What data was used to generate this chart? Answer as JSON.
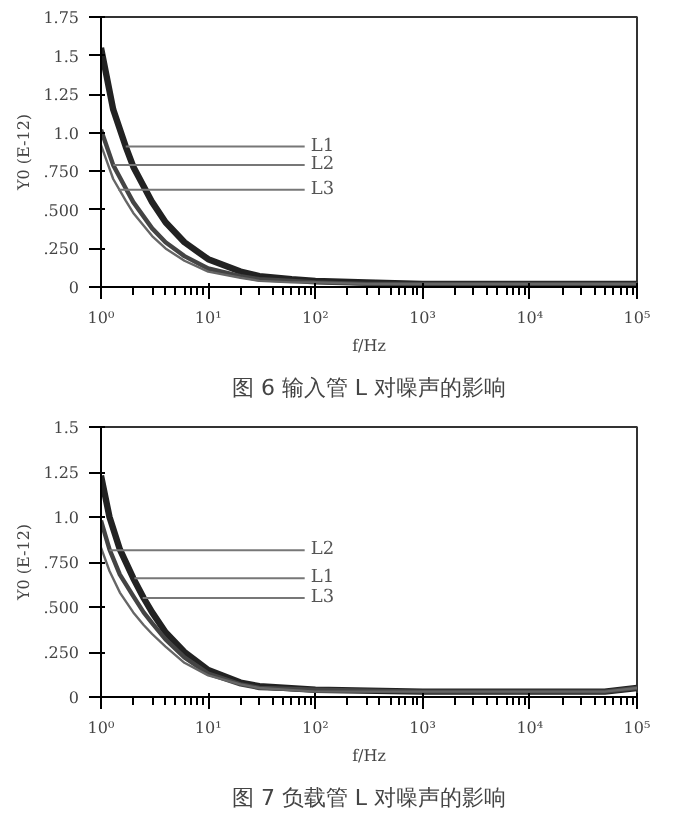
{
  "chart_data": [
    {
      "type": "line",
      "title": "图 6 输入管 L 对噪声的影响",
      "xlabel": "f/Hz",
      "ylabel": "Y0 (E-12)",
      "log": "x",
      "xlim": [
        1,
        100000
      ],
      "ylim": [
        0,
        1.75
      ],
      "xticks": [
        {
          "value": 1,
          "label": "10⁰"
        },
        {
          "value": 10,
          "label": "10¹"
        },
        {
          "value": 100,
          "label": "10²"
        },
        {
          "value": 1000,
          "label": "10³"
        },
        {
          "value": 10000,
          "label": "10⁴"
        },
        {
          "value": 100000,
          "label": "10⁵"
        }
      ],
      "yticks": [
        0,
        {
          "value": 0.25,
          "label": ".250"
        },
        {
          "value": 0.5,
          "label": ".500"
        },
        {
          "value": 0.75,
          "label": ".750"
        },
        {
          "value": 1.0,
          "label": "1.0"
        },
        1.25,
        1.5,
        1.75
      ],
      "x": [
        1,
        1.3,
        1.7,
        2,
        3,
        4,
        6,
        10,
        20,
        30,
        60,
        100,
        300,
        1000,
        10000,
        100000
      ],
      "series": [
        {
          "color": "#222222",
          "values": [
            1.55,
            1.15,
            0.91,
            0.78,
            0.55,
            0.42,
            0.29,
            0.18,
            0.1,
            0.07,
            0.05,
            0.04,
            0.03,
            0.02,
            0.02,
            0.02
          ]
        },
        {
          "color": "#444444",
          "values": [
            1.02,
            0.79,
            0.64,
            0.55,
            0.38,
            0.29,
            0.2,
            0.12,
            0.07,
            0.05,
            0.04,
            0.03,
            0.02,
            0.02,
            0.02,
            0.02
          ]
        },
        {
          "color": "#666666",
          "values": [
            0.92,
            0.7,
            0.56,
            0.48,
            0.33,
            0.25,
            0.17,
            0.1,
            0.06,
            0.04,
            0.03,
            0.03,
            0.02,
            0.02,
            0.02,
            0.02
          ]
        }
      ],
      "annotations": [
        {
          "text": "L1",
          "x": 1.7,
          "y": 0.91
        },
        {
          "text": "L2",
          "x": 1.3,
          "y": 0.79
        },
        {
          "text": "L3",
          "x": 1.45,
          "y": 0.63
        }
      ]
    },
    {
      "type": "line",
      "title": "图 7 负载管 L 对噪声的影响",
      "xlabel": "f/Hz",
      "ylabel": "Y0 (E-12)",
      "log": "x",
      "xlim": [
        1,
        100000
      ],
      "ylim": [
        0,
        1.5
      ],
      "xticks": [
        {
          "value": 1,
          "label": "10⁰"
        },
        {
          "value": 10,
          "label": "10¹"
        },
        {
          "value": 100,
          "label": "10²"
        },
        {
          "value": 1000,
          "label": "10³"
        },
        {
          "value": 10000,
          "label": "10⁴"
        },
        {
          "value": 100000,
          "label": "10⁵"
        }
      ],
      "yticks": [
        0,
        {
          "value": 0.25,
          "label": ".250"
        },
        {
          "value": 0.5,
          "label": ".500"
        },
        {
          "value": 0.75,
          "label": ".750"
        },
        {
          "value": 1.0,
          "label": "1.0"
        },
        1.25,
        1.5
      ],
      "x": [
        1,
        1.2,
        1.5,
        2,
        2.5,
        3,
        4,
        6,
        10,
        20,
        30,
        100,
        1000,
        10000,
        50000,
        100000
      ],
      "series": [
        {
          "color": "#222222",
          "values": [
            1.23,
            1.0,
            0.82,
            0.66,
            0.55,
            0.47,
            0.36,
            0.25,
            0.15,
            0.08,
            0.06,
            0.04,
            0.03,
            0.03,
            0.03,
            0.05
          ]
        },
        {
          "color": "#444444",
          "values": [
            0.98,
            0.82,
            0.68,
            0.56,
            0.47,
            0.41,
            0.32,
            0.22,
            0.13,
            0.07,
            0.05,
            0.04,
            0.03,
            0.03,
            0.03,
            0.05
          ]
        },
        {
          "color": "#666666",
          "values": [
            0.83,
            0.7,
            0.58,
            0.47,
            0.4,
            0.35,
            0.28,
            0.19,
            0.12,
            0.07,
            0.05,
            0.03,
            0.03,
            0.03,
            0.03,
            0.05
          ]
        }
      ],
      "annotations": [
        {
          "text": "L2",
          "x": 1.2,
          "y": 0.815
        },
        {
          "text": "L1",
          "x": 2.05,
          "y": 0.66
        },
        {
          "text": "L3",
          "x": 2.45,
          "y": 0.55
        }
      ]
    }
  ]
}
